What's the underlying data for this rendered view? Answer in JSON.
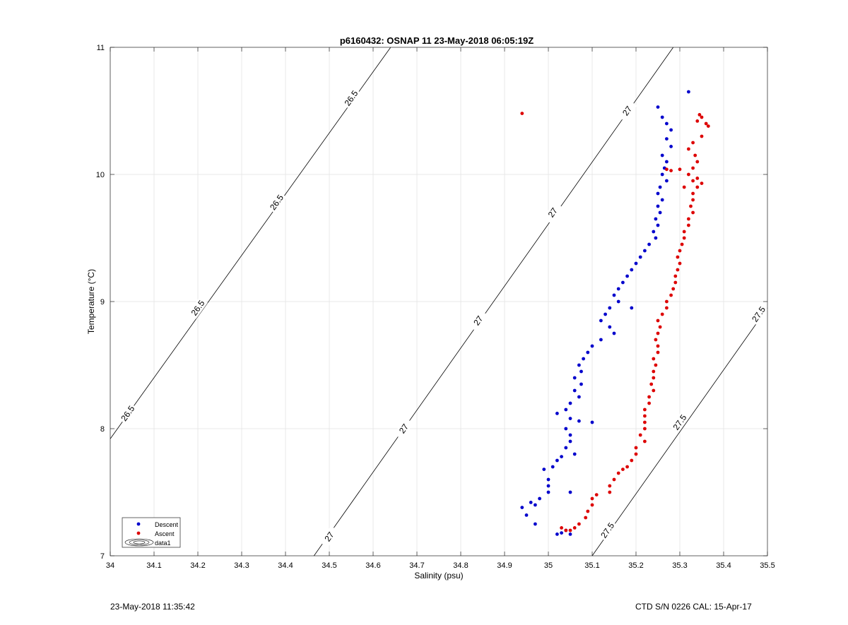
{
  "chart_data": {
    "type": "scatter",
    "title": "p6160432: OSNAP 11 23-May-2018 06:05:19Z",
    "xlabel": "Salinity (psu)",
    "ylabel": "Temperature (°C)",
    "xlim": [
      34,
      35.5
    ],
    "ylim": [
      7,
      11
    ],
    "xticks": [
      "34",
      "34.1",
      "34.2",
      "34.3",
      "34.4",
      "34.5",
      "34.6",
      "34.7",
      "34.8",
      "34.9",
      "35",
      "35.1",
      "35.2",
      "35.3",
      "35.4",
      "35.5"
    ],
    "yticks": [
      "7",
      "8",
      "9",
      "10",
      "11"
    ],
    "grid": true,
    "legend": {
      "position": "bottom-left",
      "entries": [
        "Descent",
        "Ascent",
        "data1"
      ]
    },
    "series": [
      {
        "name": "Descent",
        "color": "#0000cc",
        "points": [
          [
            35.32,
            10.65
          ],
          [
            35.25,
            10.53
          ],
          [
            35.26,
            10.45
          ],
          [
            35.27,
            10.4
          ],
          [
            35.28,
            10.35
          ],
          [
            35.27,
            10.28
          ],
          [
            35.28,
            10.22
          ],
          [
            35.26,
            10.15
          ],
          [
            35.27,
            10.1
          ],
          [
            35.265,
            10.05
          ],
          [
            35.26,
            10.0
          ],
          [
            35.27,
            9.95
          ],
          [
            35.255,
            9.9
          ],
          [
            35.25,
            9.85
          ],
          [
            35.26,
            9.8
          ],
          [
            35.25,
            9.75
          ],
          [
            35.255,
            9.7
          ],
          [
            35.245,
            9.65
          ],
          [
            35.25,
            9.6
          ],
          [
            35.24,
            9.55
          ],
          [
            35.245,
            9.5
          ],
          [
            35.23,
            9.45
          ],
          [
            35.22,
            9.4
          ],
          [
            35.21,
            9.35
          ],
          [
            35.2,
            9.3
          ],
          [
            35.19,
            9.25
          ],
          [
            35.18,
            9.2
          ],
          [
            35.17,
            9.15
          ],
          [
            35.16,
            9.1
          ],
          [
            35.15,
            9.05
          ],
          [
            35.16,
            9.0
          ],
          [
            35.14,
            8.95
          ],
          [
            35.19,
            8.95
          ],
          [
            35.13,
            8.9
          ],
          [
            35.12,
            8.85
          ],
          [
            35.14,
            8.8
          ],
          [
            35.15,
            8.75
          ],
          [
            35.12,
            8.7
          ],
          [
            35.1,
            8.65
          ],
          [
            35.09,
            8.6
          ],
          [
            35.08,
            8.55
          ],
          [
            35.07,
            8.5
          ],
          [
            35.075,
            8.45
          ],
          [
            35.06,
            8.4
          ],
          [
            35.075,
            8.35
          ],
          [
            35.06,
            8.3
          ],
          [
            35.07,
            8.25
          ],
          [
            35.05,
            8.2
          ],
          [
            35.04,
            8.15
          ],
          [
            35.02,
            8.12
          ],
          [
            35.05,
            8.08
          ],
          [
            35.07,
            8.06
          ],
          [
            35.1,
            8.05
          ],
          [
            35.04,
            8.0
          ],
          [
            35.05,
            7.95
          ],
          [
            35.05,
            7.9
          ],
          [
            35.04,
            7.85
          ],
          [
            35.06,
            7.8
          ],
          [
            35.03,
            7.78
          ],
          [
            35.02,
            7.75
          ],
          [
            35.01,
            7.7
          ],
          [
            34.99,
            7.68
          ],
          [
            35.0,
            7.6
          ],
          [
            35.0,
            7.55
          ],
          [
            35.0,
            7.5
          ],
          [
            35.05,
            7.5
          ],
          [
            34.98,
            7.45
          ],
          [
            34.96,
            7.42
          ],
          [
            34.97,
            7.4
          ],
          [
            34.94,
            7.38
          ],
          [
            34.95,
            7.32
          ],
          [
            34.97,
            7.25
          ],
          [
            35.04,
            7.2
          ],
          [
            35.03,
            7.18
          ],
          [
            35.05,
            7.17
          ],
          [
            35.02,
            7.17
          ]
        ]
      },
      {
        "name": "Ascent",
        "color": "#dd0000",
        "points": [
          [
            35.345,
            10.47
          ],
          [
            35.34,
            10.42
          ],
          [
            35.35,
            10.45
          ],
          [
            35.36,
            10.4
          ],
          [
            35.365,
            10.38
          ],
          [
            35.35,
            10.3
          ],
          [
            35.33,
            10.25
          ],
          [
            35.32,
            10.2
          ],
          [
            35.335,
            10.15
          ],
          [
            35.34,
            10.1
          ],
          [
            35.33,
            10.05
          ],
          [
            35.3,
            10.04
          ],
          [
            35.27,
            10.04
          ],
          [
            35.28,
            10.03
          ],
          [
            35.32,
            10.0
          ],
          [
            35.34,
            9.97
          ],
          [
            35.33,
            9.95
          ],
          [
            35.35,
            9.93
          ],
          [
            35.34,
            9.9
          ],
          [
            35.31,
            9.9
          ],
          [
            35.33,
            9.85
          ],
          [
            35.33,
            9.8
          ],
          [
            35.325,
            9.75
          ],
          [
            35.33,
            9.7
          ],
          [
            35.32,
            9.65
          ],
          [
            35.32,
            9.6
          ],
          [
            35.31,
            9.55
          ],
          [
            35.31,
            9.5
          ],
          [
            35.305,
            9.45
          ],
          [
            35.3,
            9.4
          ],
          [
            35.295,
            9.35
          ],
          [
            35.3,
            9.3
          ],
          [
            35.295,
            9.25
          ],
          [
            35.29,
            9.2
          ],
          [
            35.29,
            9.15
          ],
          [
            35.285,
            9.1
          ],
          [
            35.28,
            9.05
          ],
          [
            35.27,
            9.0
          ],
          [
            35.27,
            8.95
          ],
          [
            35.26,
            8.9
          ],
          [
            35.25,
            8.85
          ],
          [
            35.255,
            8.8
          ],
          [
            35.25,
            8.75
          ],
          [
            35.245,
            8.7
          ],
          [
            35.25,
            8.65
          ],
          [
            35.25,
            8.6
          ],
          [
            35.24,
            8.55
          ],
          [
            35.245,
            8.5
          ],
          [
            35.24,
            8.45
          ],
          [
            35.24,
            8.4
          ],
          [
            35.235,
            8.35
          ],
          [
            35.24,
            8.3
          ],
          [
            35.23,
            8.25
          ],
          [
            35.23,
            8.2
          ],
          [
            35.22,
            8.15
          ],
          [
            35.22,
            8.1
          ],
          [
            35.22,
            8.05
          ],
          [
            35.22,
            8.0
          ],
          [
            35.21,
            7.95
          ],
          [
            35.22,
            7.9
          ],
          [
            35.2,
            7.85
          ],
          [
            35.2,
            7.8
          ],
          [
            35.19,
            7.75
          ],
          [
            35.18,
            7.7
          ],
          [
            35.17,
            7.68
          ],
          [
            35.16,
            7.65
          ],
          [
            35.15,
            7.6
          ],
          [
            35.14,
            7.55
          ],
          [
            35.14,
            7.5
          ],
          [
            35.11,
            7.48
          ],
          [
            35.1,
            7.45
          ],
          [
            35.1,
            7.4
          ],
          [
            35.09,
            7.35
          ],
          [
            35.085,
            7.3
          ],
          [
            35.07,
            7.25
          ],
          [
            35.06,
            7.22
          ],
          [
            35.05,
            7.2
          ],
          [
            35.03,
            7.22
          ],
          [
            35.04,
            7.2
          ],
          [
            34.94,
            10.48
          ]
        ]
      }
    ],
    "contours": [
      {
        "label": "26.5",
        "points": [
          [
            34.0,
            7.92
          ],
          [
            34.64,
            11.0
          ]
        ]
      },
      {
        "label": "27",
        "points": [
          [
            34.465,
            7.0
          ],
          [
            35.285,
            11.0
          ]
        ]
      },
      {
        "label": "27.5",
        "points": [
          [
            35.1,
            7.0
          ],
          [
            35.5,
            8.95
          ]
        ]
      }
    ],
    "contour_labels": [
      {
        "text": "26.5",
        "at": [
          34.04,
          8.12
        ]
      },
      {
        "text": "26.5",
        "at": [
          34.2,
          8.95
        ]
      },
      {
        "text": "26.5",
        "at": [
          34.38,
          9.78
        ]
      },
      {
        "text": "26.5",
        "at": [
          34.55,
          10.6
        ]
      },
      {
        "text": "27",
        "at": [
          34.5,
          7.15
        ]
      },
      {
        "text": "27",
        "at": [
          34.67,
          8.0
        ]
      },
      {
        "text": "27",
        "at": [
          34.84,
          8.85
        ]
      },
      {
        "text": "27",
        "at": [
          35.01,
          9.7
        ]
      },
      {
        "text": "27",
        "at": [
          35.18,
          10.5
        ]
      },
      {
        "text": "27.5",
        "at": [
          35.135,
          7.2
        ]
      },
      {
        "text": "27.5",
        "at": [
          35.3,
          8.05
        ]
      },
      {
        "text": "27.5",
        "at": [
          35.48,
          8.9
        ]
      }
    ]
  },
  "footer": {
    "left": "23-May-2018 11:35:42",
    "right": "CTD S/N 0226  CAL: 15-Apr-17"
  }
}
